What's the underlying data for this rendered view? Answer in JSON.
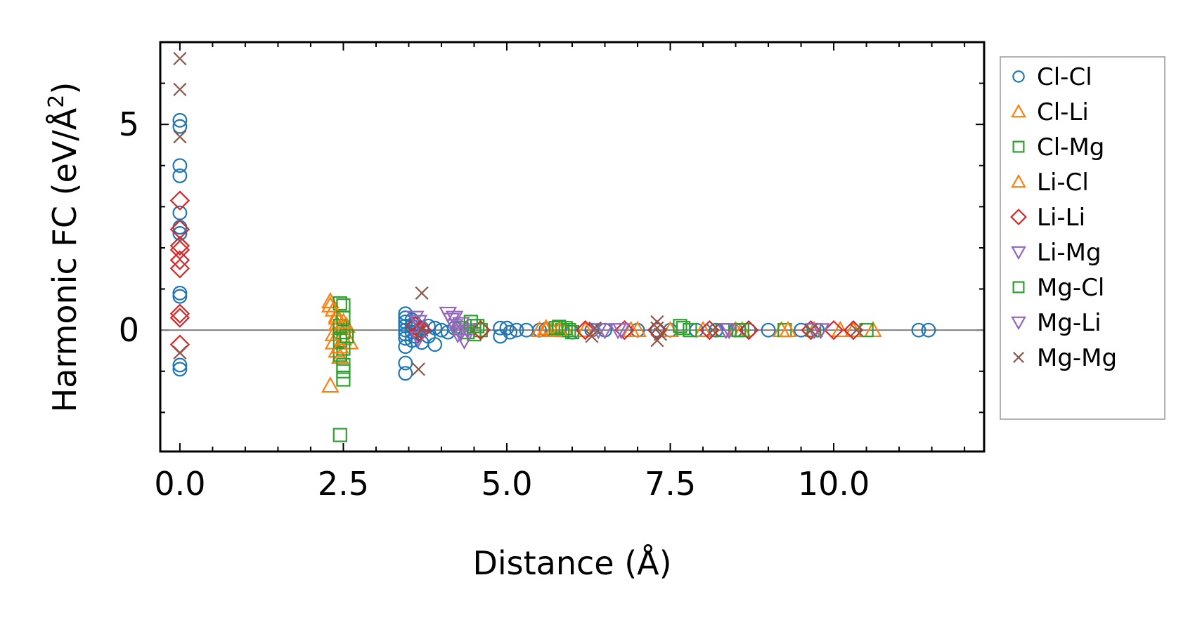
{
  "chart_data": {
    "type": "scatter",
    "title": "",
    "xlabel": "Distance (Å)",
    "ylabel": "Harmonic FC (eV/Å²)",
    "ylabel_parts": {
      "prefix": "Harmonic FC (eV/Å",
      "superscript": "2",
      "suffix": ")"
    },
    "xlim": [
      -0.3,
      12.3
    ],
    "ylim": [
      -2.95,
      7.0
    ],
    "x_ticks": [
      0.0,
      2.5,
      5.0,
      7.5,
      10.0
    ],
    "x_tick_labels": [
      "0.0",
      "2.5",
      "5.0",
      "7.5",
      "10.0"
    ],
    "y_ticks": [
      0,
      5
    ],
    "y_tick_labels": [
      "0",
      "5"
    ],
    "x_minor_step": 0.5,
    "y_minor_step": 1.0,
    "zero_line": true,
    "legend_position": "outside-right",
    "series": [
      {
        "name": "Cl-Cl",
        "marker": "circle",
        "color": "#1f77b4",
        "points": [
          [
            0,
            5.1
          ],
          [
            0,
            4.95
          ],
          [
            0,
            4.0
          ],
          [
            0,
            3.75
          ],
          [
            0,
            2.85
          ],
          [
            0,
            2.5
          ],
          [
            0,
            2.35
          ],
          [
            0,
            0.9
          ],
          [
            0,
            0.82
          ],
          [
            0,
            -0.85
          ],
          [
            0,
            -0.95
          ],
          [
            3.45,
            0.4
          ],
          [
            3.45,
            0.3
          ],
          [
            3.45,
            0.2
          ],
          [
            3.45,
            0.1
          ],
          [
            3.45,
            0.0
          ],
          [
            3.45,
            -0.1
          ],
          [
            3.45,
            -0.2
          ],
          [
            3.45,
            -0.4
          ],
          [
            3.45,
            -0.8
          ],
          [
            3.45,
            -1.05
          ],
          [
            3.55,
            0.25
          ],
          [
            3.55,
            0.1
          ],
          [
            3.55,
            -0.05
          ],
          [
            3.55,
            -0.25
          ],
          [
            3.6,
            0.15
          ],
          [
            3.6,
            -0.15
          ],
          [
            3.7,
            0.05
          ],
          [
            3.7,
            -0.3
          ],
          [
            3.8,
            0.1
          ],
          [
            3.8,
            -0.15
          ],
          [
            3.9,
            0.05
          ],
          [
            3.9,
            -0.35
          ],
          [
            4.0,
            0.0
          ],
          [
            4.1,
            -0.05
          ],
          [
            4.2,
            0.05
          ],
          [
            4.9,
            0.05
          ],
          [
            4.9,
            -0.15
          ],
          [
            5.0,
            0.05
          ],
          [
            5.05,
            -0.05
          ],
          [
            5.15,
            0.0
          ],
          [
            5.3,
            0.0
          ],
          [
            5.5,
            0.0
          ],
          [
            5.6,
            0.02
          ],
          [
            6.0,
            -0.05
          ],
          [
            6.3,
            0.0
          ],
          [
            6.5,
            0.0
          ],
          [
            7.0,
            0.0
          ],
          [
            7.3,
            0.0
          ],
          [
            7.5,
            0.0
          ],
          [
            7.9,
            0.0
          ],
          [
            8.2,
            0.0
          ],
          [
            8.5,
            0.0
          ],
          [
            8.7,
            0.0
          ],
          [
            9.0,
            0.0
          ],
          [
            9.5,
            0.0
          ],
          [
            9.75,
            0.0
          ],
          [
            11.3,
            0.0
          ],
          [
            11.45,
            0.0
          ]
        ]
      },
      {
        "name": "Cl-Li",
        "marker": "triangle-up",
        "color": "#ff7f0e",
        "points": [
          [
            2.3,
            0.7
          ],
          [
            2.35,
            0.5
          ],
          [
            2.4,
            0.3
          ],
          [
            2.4,
            0.15
          ],
          [
            2.35,
            -0.1
          ],
          [
            2.35,
            -0.3
          ],
          [
            2.4,
            -0.5
          ],
          [
            2.45,
            -0.65
          ],
          [
            2.3,
            -1.35
          ],
          [
            2.45,
            0.05
          ],
          [
            2.5,
            -0.2
          ],
          [
            2.55,
            0.1
          ],
          [
            2.6,
            -0.3
          ],
          [
            5.5,
            0.0
          ],
          [
            5.6,
            0.05
          ],
          [
            5.7,
            0.0
          ],
          [
            5.9,
            0.0
          ],
          [
            6.2,
            0.0
          ],
          [
            7.0,
            0.0
          ],
          [
            7.5,
            0.0
          ],
          [
            8.0,
            0.0
          ],
          [
            8.6,
            0.0
          ],
          [
            9.2,
            0.0
          ],
          [
            9.7,
            0.0
          ],
          [
            10.1,
            0.0
          ],
          [
            10.6,
            0.0
          ]
        ]
      },
      {
        "name": "Cl-Mg",
        "marker": "square",
        "color": "#2ca02c",
        "points": [
          [
            2.45,
            0.65
          ],
          [
            2.5,
            0.6
          ],
          [
            2.45,
            0.1
          ],
          [
            2.5,
            -0.05
          ],
          [
            2.45,
            -0.25
          ],
          [
            2.5,
            -0.45
          ],
          [
            2.45,
            -0.6
          ],
          [
            2.5,
            -0.85
          ],
          [
            2.5,
            -1.0
          ],
          [
            2.5,
            -1.2
          ],
          [
            2.45,
            -2.55
          ],
          [
            4.3,
            0.05
          ],
          [
            4.4,
            -0.05
          ],
          [
            4.5,
            0.1
          ],
          [
            4.6,
            0.0
          ],
          [
            4.5,
            -0.1
          ],
          [
            5.8,
            0.08
          ],
          [
            5.85,
            0.0
          ],
          [
            5.9,
            0.05
          ],
          [
            6.0,
            -0.05
          ],
          [
            7.65,
            0.1
          ],
          [
            7.8,
            0.0
          ],
          [
            8.3,
            0.0
          ],
          [
            8.6,
            0.0
          ],
          [
            9.25,
            0.0
          ],
          [
            9.7,
            0.0
          ],
          [
            10.5,
            0.0
          ]
        ]
      },
      {
        "name": "Li-Cl",
        "marker": "triangle-up",
        "color": "#ff7f0e",
        "points": [
          [
            2.3,
            0.6
          ],
          [
            2.4,
            0.35
          ],
          [
            2.45,
            -0.4
          ],
          [
            2.5,
            0.2
          ],
          [
            5.6,
            0.0
          ],
          [
            5.8,
            0.0
          ],
          [
            6.9,
            0.0
          ],
          [
            8.5,
            0.0
          ],
          [
            9.3,
            0.0
          ],
          [
            10.3,
            0.0
          ]
        ]
      },
      {
        "name": "Li-Li",
        "marker": "diamond",
        "color": "#d62728",
        "points": [
          [
            0,
            3.15
          ],
          [
            0,
            2.45
          ],
          [
            0,
            2.05
          ],
          [
            0,
            1.95
          ],
          [
            0,
            1.7
          ],
          [
            0,
            1.5
          ],
          [
            0,
            0.4
          ],
          [
            0,
            0.3
          ],
          [
            0,
            -0.35
          ],
          [
            3.6,
            0.1
          ],
          [
            3.65,
            -0.05
          ],
          [
            3.7,
            0.0
          ],
          [
            4.6,
            0.0
          ],
          [
            6.2,
            0.0
          ],
          [
            6.8,
            0.0
          ],
          [
            7.3,
            0.0
          ],
          [
            8.1,
            0.0
          ],
          [
            8.7,
            0.0
          ],
          [
            9.65,
            0.0
          ],
          [
            10.0,
            0.0
          ],
          [
            10.3,
            0.0
          ]
        ]
      },
      {
        "name": "Li-Mg",
        "marker": "triangle-down",
        "color": "#9467bd",
        "points": [
          [
            3.6,
            0.3
          ],
          [
            3.65,
            0.2
          ],
          [
            3.65,
            -0.2
          ],
          [
            4.1,
            0.4
          ],
          [
            4.15,
            0.25
          ],
          [
            4.2,
            0.1
          ],
          [
            4.25,
            -0.1
          ],
          [
            4.3,
            0.15
          ],
          [
            4.35,
            -0.25
          ],
          [
            4.4,
            0.0
          ],
          [
            6.4,
            0.0
          ],
          [
            6.7,
            0.0
          ],
          [
            8.4,
            0.0
          ],
          [
            9.8,
            0.0
          ]
        ]
      },
      {
        "name": "Mg-Cl",
        "marker": "square",
        "color": "#2ca02c",
        "points": [
          [
            2.5,
            0.3
          ],
          [
            2.55,
            -0.15
          ],
          [
            4.45,
            0.2
          ],
          [
            4.55,
            0.1
          ],
          [
            5.75,
            0.05
          ],
          [
            5.95,
            0.0
          ],
          [
            7.7,
            0.05
          ],
          [
            8.55,
            0.0
          ]
        ]
      },
      {
        "name": "Mg-Li",
        "marker": "triangle-down",
        "color": "#9467bd",
        "points": [
          [
            4.2,
            0.3
          ],
          [
            4.3,
            -0.05
          ],
          [
            6.5,
            0.0
          ],
          [
            6.75,
            0.0
          ],
          [
            8.35,
            0.0
          ],
          [
            9.7,
            0.0
          ]
        ]
      },
      {
        "name": "Mg-Mg",
        "marker": "x",
        "color": "#8c564b",
        "points": [
          [
            0,
            6.6
          ],
          [
            0,
            5.85
          ],
          [
            0,
            4.7
          ],
          [
            0,
            -0.55
          ],
          [
            3.7,
            0.9
          ],
          [
            3.65,
            -0.95
          ],
          [
            3.7,
            0.0
          ],
          [
            6.3,
            -0.15
          ],
          [
            6.35,
            0.05
          ],
          [
            7.3,
            0.2
          ],
          [
            7.3,
            0.05
          ],
          [
            7.35,
            -0.1
          ],
          [
            7.3,
            -0.25
          ],
          [
            8.15,
            0.0
          ],
          [
            9.65,
            0.0
          ],
          [
            10.35,
            0.0
          ]
        ]
      }
    ]
  }
}
